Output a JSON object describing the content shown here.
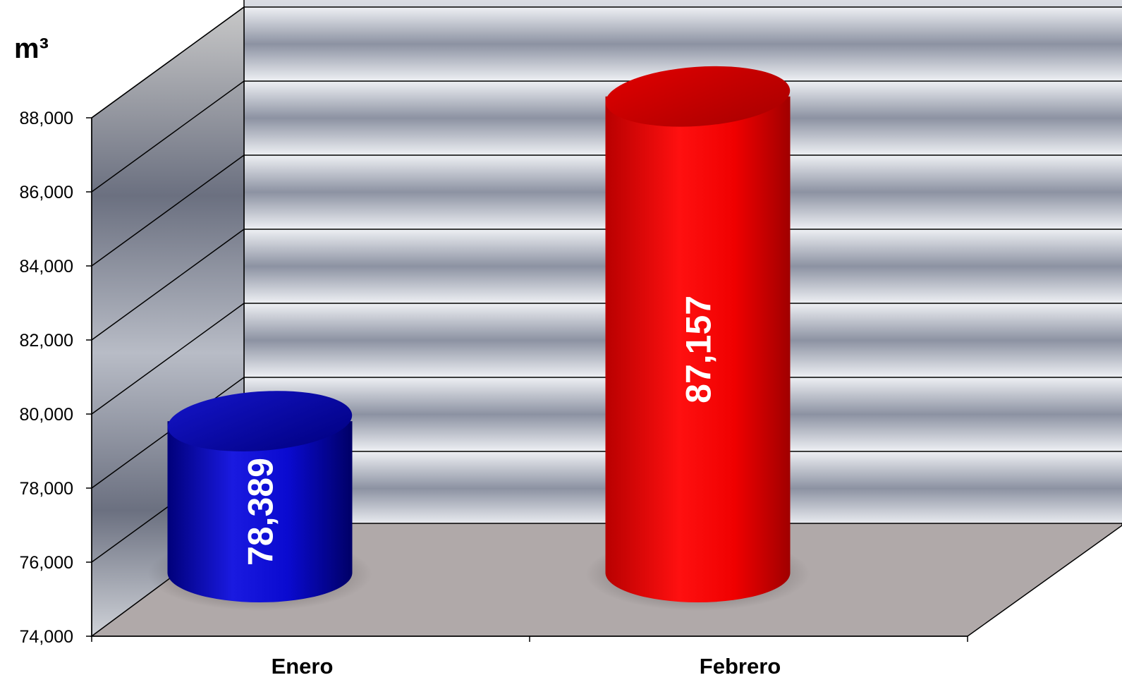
{
  "chart_data": {
    "type": "bar",
    "style": "3d-cylinder",
    "unit_label": "m³",
    "categories": [
      "Enero",
      "Febrero"
    ],
    "values": [
      78389,
      87157
    ],
    "data_labels": [
      "78,389",
      "87,157"
    ],
    "colors": [
      "#0000c0",
      "#ff0000"
    ],
    "ylim": [
      74000,
      88000
    ],
    "yticks": [
      74000,
      76000,
      78000,
      80000,
      82000,
      84000,
      86000,
      88000
    ],
    "ytick_labels": [
      "74,000",
      "76,000",
      "78,000",
      "80,000",
      "82,000",
      "84,000",
      "86,000",
      "88,000"
    ],
    "grid": true,
    "legend": "none"
  }
}
